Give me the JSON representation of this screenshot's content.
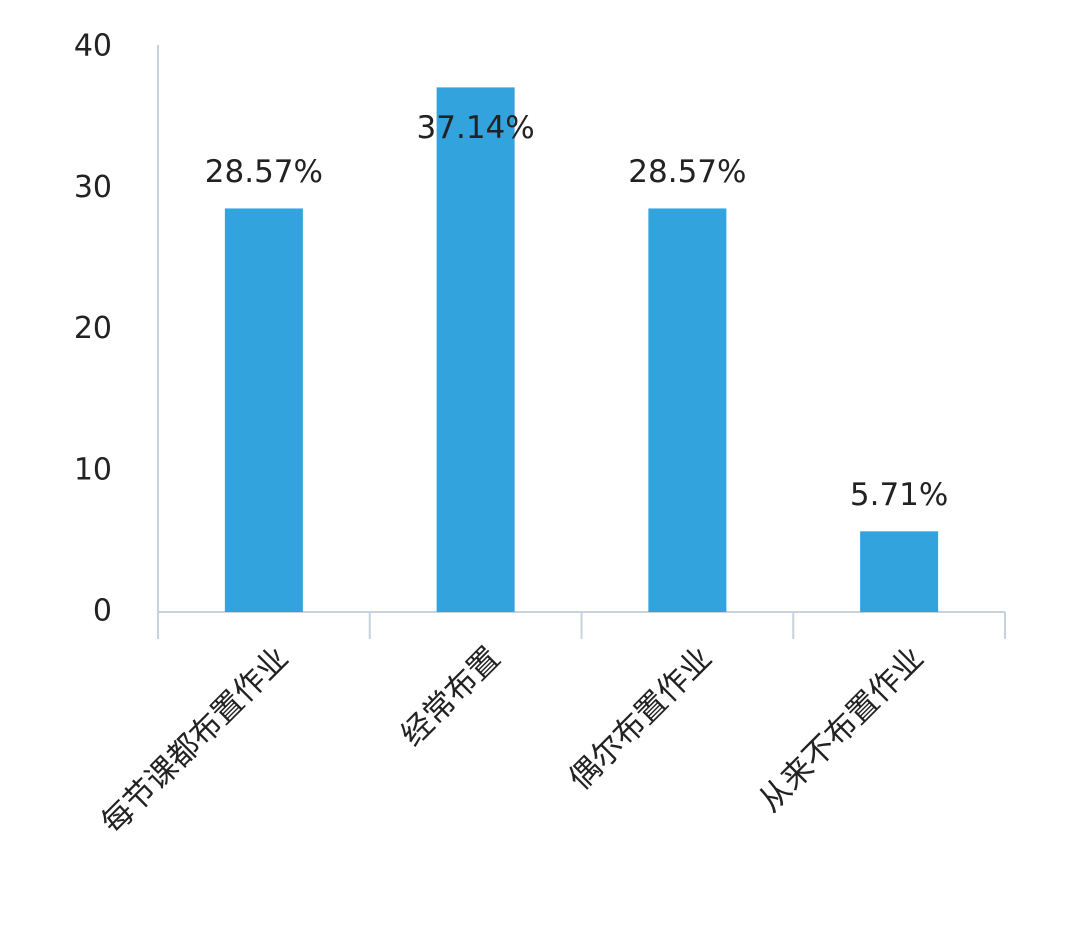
{
  "chart_data": {
    "type": "bar",
    "categories": [
      "每节课都布置作业",
      "经常布置",
      "偶尔布置作业",
      "从来不布置作业"
    ],
    "values": [
      28.57,
      37.14,
      28.57,
      5.71
    ],
    "value_labels": [
      "28.57%",
      "37.14%",
      "28.57%",
      "5.71%"
    ],
    "color": "#32a3dc",
    "ylim": [
      0,
      40
    ],
    "yticks": [
      0,
      10,
      20,
      30,
      40
    ]
  }
}
